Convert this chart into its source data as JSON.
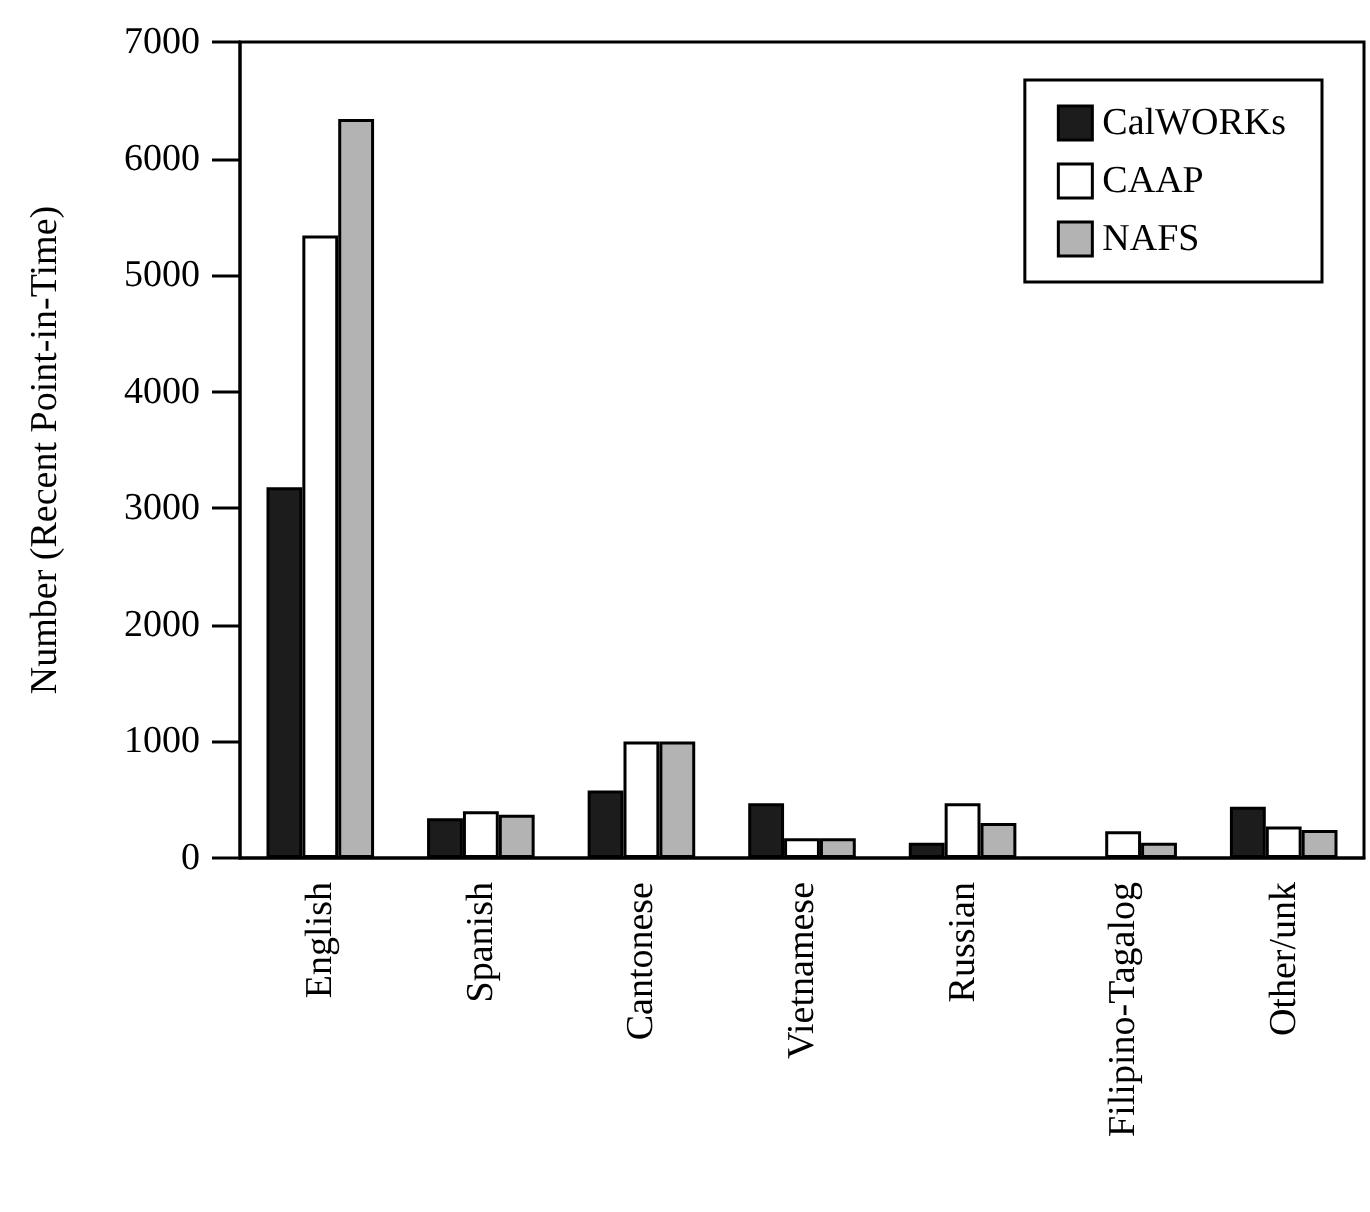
{
  "chart_data": {
    "type": "bar",
    "ylabel": "Number (Recent Point-in-Time)",
    "categories": [
      "English",
      "Spanish",
      "Cantonese",
      "Vietnamese",
      "Russian",
      "Filipino-Tagalog",
      "Other/unk"
    ],
    "series": [
      {
        "name": "CalWORKs",
        "color": "#1c1c1c",
        "values": [
          3180,
          340,
          580,
          470,
          130,
          null,
          440
        ]
      },
      {
        "name": "CAAP",
        "color": "#ffffff",
        "values": [
          5340,
          400,
          1000,
          170,
          470,
          230,
          270
        ]
      },
      {
        "name": "NAFS",
        "color": "#b3b3b3",
        "values": [
          6340,
          370,
          1000,
          170,
          300,
          130,
          240
        ]
      }
    ],
    "ylim": [
      0,
      7000
    ],
    "yticks": [
      0,
      1000,
      2000,
      3000,
      4000,
      5000,
      6000,
      7000
    ],
    "legend": "top right"
  }
}
